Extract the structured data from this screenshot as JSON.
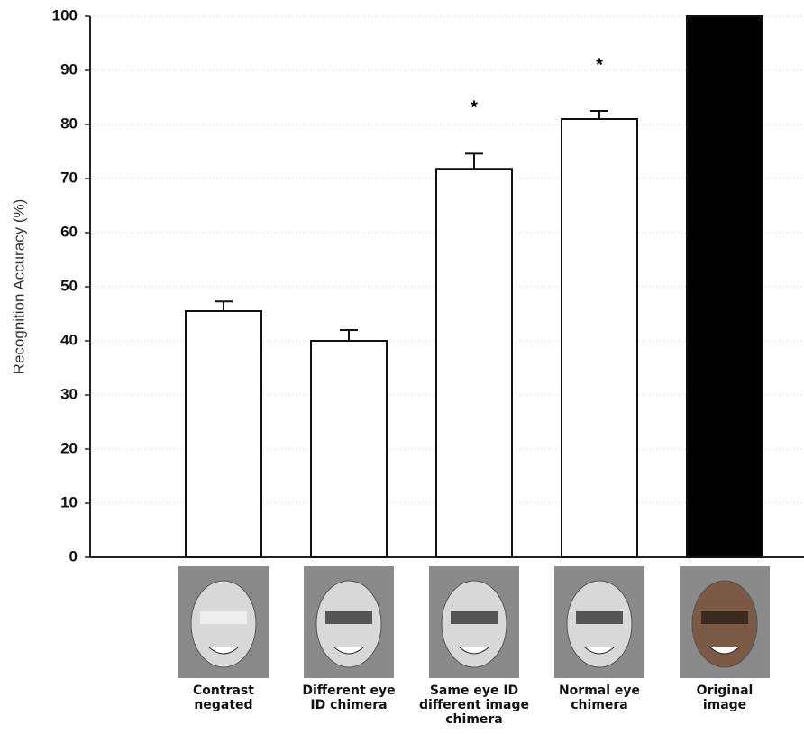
{
  "chart_data": {
    "type": "bar",
    "y_label": "Recognition Accuracy (%)",
    "categories": [
      "Contrast\nnegated",
      "Different eye\nID chimera",
      "Same eye ID\ndifferent image\nchimera",
      "Normal eye\nchimera",
      "Original\nimage"
    ],
    "values": [
      45.5,
      40,
      71.8,
      81,
      100
    ],
    "errors": [
      1.8,
      2,
      2.8,
      1.5,
      0
    ],
    "colors": [
      "#ffffff",
      "#ffffff",
      "#ffffff",
      "#ffffff",
      "#000000"
    ],
    "significance": [
      null,
      null,
      "*",
      "*",
      null
    ],
    "ylim": [
      0,
      100
    ],
    "yticks": [
      0,
      10,
      20,
      30,
      40,
      50,
      60,
      70,
      80,
      90,
      100
    ],
    "grid": true
  }
}
